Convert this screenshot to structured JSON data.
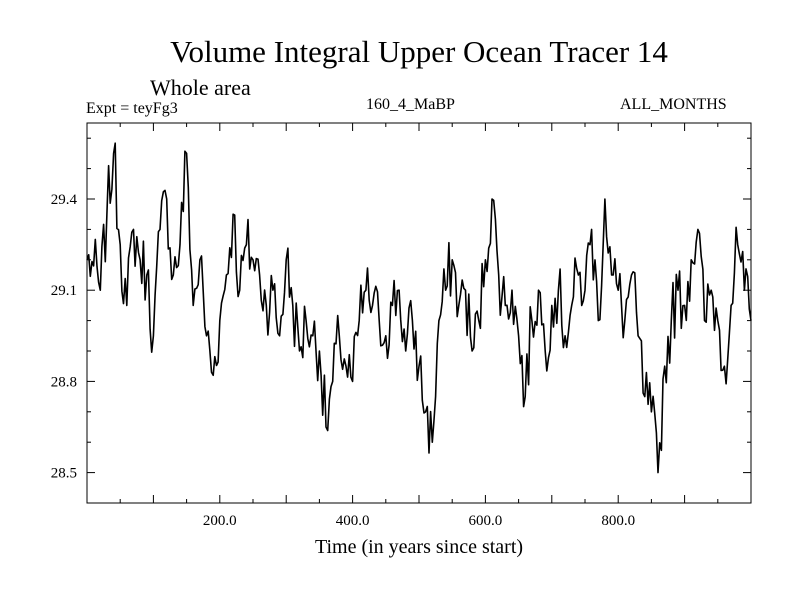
{
  "chart_data": {
    "type": "line",
    "title": "Volume Integral Upper Ocean Tracer 14",
    "subtitle": "Whole area",
    "experiment": "Expt = teyFg3",
    "run_label": "160_4_MaBP",
    "period_label": "ALL_MONTHS",
    "xlabel": "Time (in years since start)",
    "ylabel": "",
    "xlim": [
      0,
      1000
    ],
    "ylim": [
      28.4,
      29.65
    ],
    "xticks": [
      200,
      400,
      600,
      800
    ],
    "xtick_labels": [
      "200.0",
      "400.0",
      "600.0",
      "800.0"
    ],
    "yticks": [
      28.5,
      28.8,
      29.1,
      29.4
    ],
    "ytick_labels": [
      "28.5",
      "28.8",
      "29.1",
      "29.4"
    ],
    "series": [
      {
        "name": "tracer_14",
        "x": [
          0,
          10,
          20,
          30,
          40,
          50,
          60,
          70,
          80,
          90,
          100,
          110,
          120,
          130,
          140,
          150,
          160,
          170,
          180,
          190,
          200,
          210,
          220,
          230,
          240,
          250,
          260,
          270,
          280,
          290,
          300,
          310,
          320,
          330,
          340,
          350,
          360,
          370,
          380,
          390,
          400,
          410,
          420,
          430,
          440,
          450,
          460,
          470,
          480,
          490,
          500,
          510,
          520,
          530,
          540,
          550,
          560,
          570,
          580,
          590,
          600,
          610,
          620,
          630,
          640,
          650,
          660,
          670,
          680,
          690,
          700,
          710,
          720,
          730,
          740,
          750,
          760,
          770,
          780,
          790,
          800,
          810,
          820,
          830,
          840,
          850,
          860,
          870,
          880,
          890,
          900,
          910,
          920,
          930,
          940,
          950,
          960,
          970,
          980,
          990,
          1000
        ],
        "values": [
          29.2,
          29.18,
          29.1,
          29.35,
          29.55,
          29.25,
          29.05,
          29.3,
          29.2,
          29.15,
          28.95,
          29.3,
          29.4,
          29.15,
          29.25,
          29.55,
          29.05,
          29.2,
          28.95,
          28.82,
          29.0,
          29.15,
          29.35,
          29.1,
          29.25,
          29.2,
          29.15,
          29.05,
          29.1,
          28.95,
          29.2,
          29.05,
          28.9,
          29.0,
          28.95,
          28.9,
          28.65,
          28.8,
          28.95,
          28.85,
          28.8,
          29.0,
          29.1,
          29.05,
          29.0,
          28.95,
          29.05,
          29.1,
          28.9,
          29.0,
          28.85,
          28.7,
          28.6,
          29.0,
          29.1,
          29.2,
          29.05,
          29.1,
          28.9,
          29.0,
          29.2,
          29.4,
          29.15,
          29.05,
          29.1,
          28.95,
          28.75,
          29.0,
          29.1,
          28.9,
          29.05,
          29.1,
          28.95,
          29.05,
          29.15,
          29.1,
          29.3,
          29.0,
          29.4,
          29.15,
          29.1,
          29.0,
          29.15,
          28.95,
          28.75,
          28.7,
          28.5,
          28.85,
          29.0,
          29.1,
          29.05,
          29.2,
          29.3,
          29.0,
          29.1,
          29.0,
          28.85,
          29.05,
          29.25,
          29.1,
          29.0
        ]
      }
    ]
  }
}
